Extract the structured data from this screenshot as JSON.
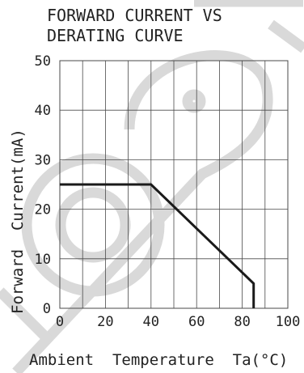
{
  "chart_data": {
    "type": "line",
    "title": "FORWARD CURRENT VS DERATING CURVE",
    "title_lines": [
      "FORWARD CURRENT VS",
      "DERATING CURVE"
    ],
    "xlabel": "Ambient  Temperature  Ta(°C)",
    "ylabel": "Forward  Current(mA)",
    "x_ticks": [
      0,
      20,
      40,
      60,
      80,
      100
    ],
    "y_ticks": [
      0,
      10,
      20,
      30,
      40,
      50
    ],
    "xlim": [
      0,
      100
    ],
    "ylim": [
      0,
      50
    ],
    "grid": true,
    "series": [
      {
        "x": [
          0,
          40,
          85,
          85
        ],
        "y": [
          25,
          25,
          5,
          0
        ]
      }
    ]
  },
  "colors": {
    "curve": "#1a1a1a",
    "grid": "#4a4a4a",
    "watermark": "#d9d9d9",
    "text": "#222222"
  }
}
